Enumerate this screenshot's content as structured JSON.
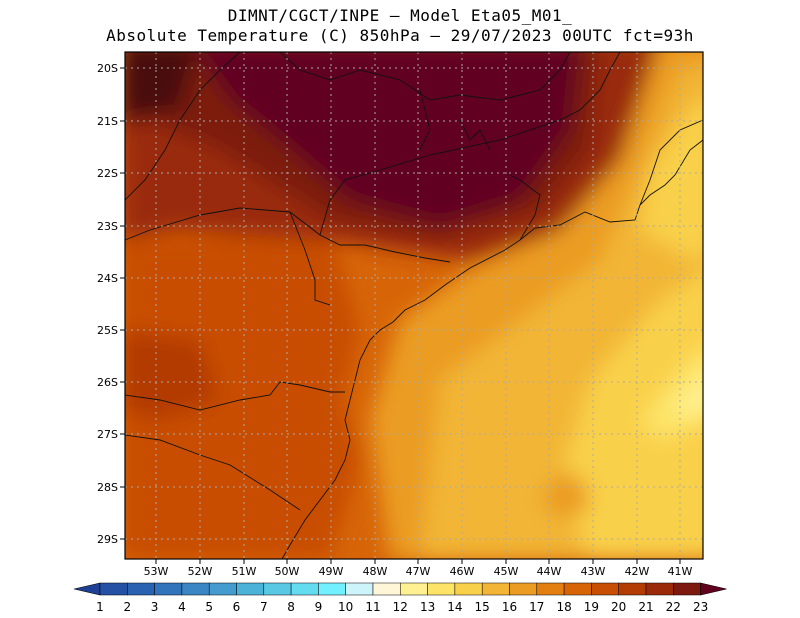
{
  "header": {
    "line1": "DIMNT/CGCT/INPE –  Model Eta05_M01_",
    "line2": "Absolute Temperature (C) 850hPa –  29/07/2023 00UTC fct=93h"
  },
  "map": {
    "lat_labels": [
      "20S",
      "21S",
      "22S",
      "23S",
      "24S",
      "25S",
      "26S",
      "27S",
      "28S",
      "29S"
    ],
    "lon_labels": [
      "53W",
      "52W",
      "51W",
      "50W",
      "49W",
      "48W",
      "47W",
      "46W",
      "45W",
      "44W",
      "43W",
      "42W",
      "41W"
    ],
    "grid": "dotted"
  },
  "colorbar": {
    "labels": [
      "1",
      "2",
      "3",
      "4",
      "5",
      "6",
      "7",
      "8",
      "9",
      "10",
      "11",
      "12",
      "13",
      "14",
      "15",
      "16",
      "17",
      "18",
      "19",
      "20",
      "21",
      "22",
      "23"
    ],
    "colors": [
      "#1f3f94",
      "#2451a4",
      "#2a62b2",
      "#3174bc",
      "#3a86c4",
      "#439ccd",
      "#4db2d8",
      "#58c8e4",
      "#64dcf0",
      "#73f0ff",
      "#cdf3fb",
      "#fff6d8",
      "#fff191",
      "#fde468",
      "#f9d04a",
      "#f2b535",
      "#eb9c22",
      "#e27f10",
      "#d76508",
      "#c84e04",
      "#b33b04",
      "#9a2a08",
      "#7d1a10",
      "#620020"
    ]
  }
}
